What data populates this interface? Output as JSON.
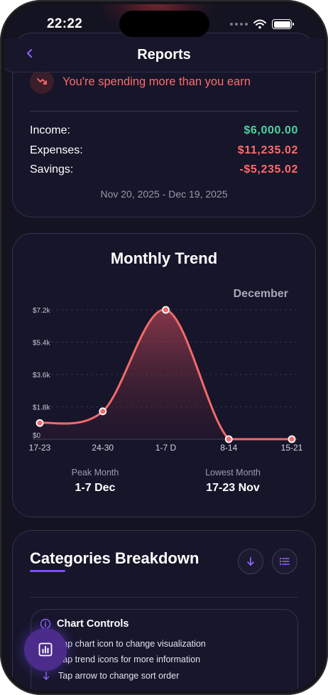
{
  "status_bar": {
    "time": "22:22"
  },
  "header": {
    "title": "Reports",
    "back_icon": "chevron-left-icon"
  },
  "summary": {
    "warning": "You're spending more than you earn",
    "warning_icon": "trending-down-icon",
    "rows": [
      {
        "label": "Income:",
        "value": "$6,000.00",
        "color": "#4cd3a0"
      },
      {
        "label": "Expenses:",
        "value": "$11,235.02",
        "color": "#ff6b6b"
      },
      {
        "label": "Savings:",
        "value": "-$5,235.02",
        "color": "#ff6b6b"
      }
    ],
    "date_range": "Nov 20, 2025 - Dec 19, 2025"
  },
  "trend": {
    "title": "Monthly Trend",
    "month_label": "December",
    "peak_label": "Peak Month",
    "peak_value": "1-7 Dec",
    "lowest_label": "Lowest Month",
    "lowest_value": "17-23 Nov"
  },
  "chart_data": {
    "type": "area",
    "categories": [
      "17-23",
      "24-30",
      "1-7 D",
      "8-14",
      "15-21"
    ],
    "series": [
      {
        "values": [
          900,
          1550,
          7200,
          0,
          0
        ]
      }
    ],
    "yticks": [
      "$0",
      "$1.8k",
      "$3.6k",
      "$5.4k",
      "$7.2k"
    ],
    "ylim": [
      0,
      7200
    ],
    "line_color": "#f26a6a",
    "grid": true
  },
  "categories_breakdown": {
    "title": "Categories Breakdown",
    "sort_icon": "arrow-down-icon",
    "list_icon": "list-icon",
    "controls": {
      "title": "Chart Controls",
      "items": [
        {
          "icon": "chart-icon",
          "text": "Tap chart icon to change visualization"
        },
        {
          "icon": "trend-icon",
          "text": "Tap trend icons for more information"
        },
        {
          "icon": "arrow-down-icon",
          "text": "Tap arrow to change sort order"
        }
      ]
    }
  },
  "fab": {
    "icon": "bar-chart-icon"
  }
}
